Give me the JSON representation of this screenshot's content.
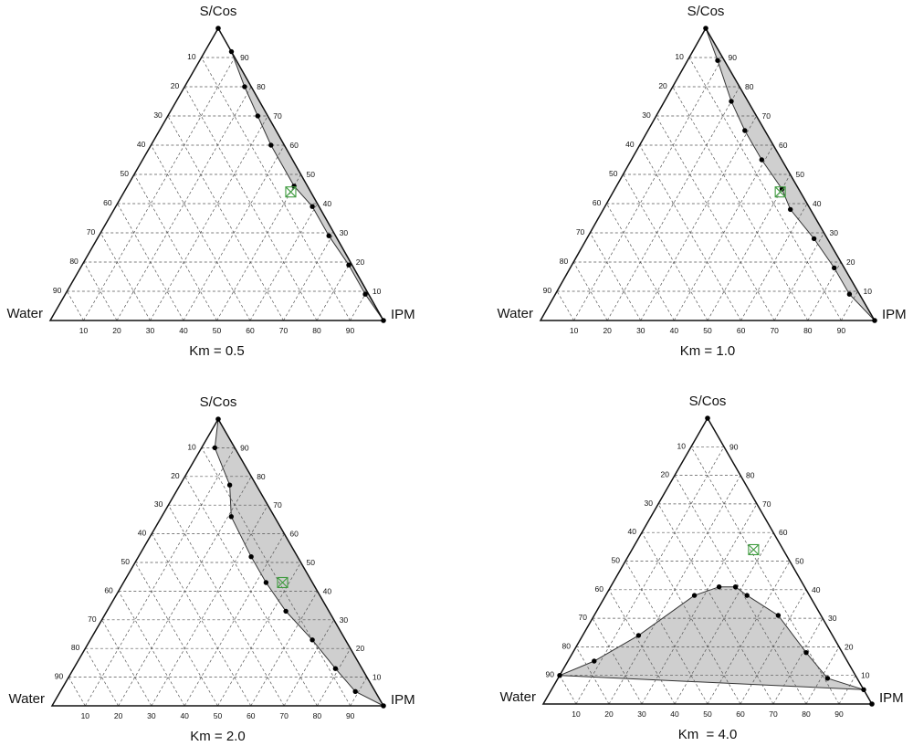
{
  "chart_data": [
    {
      "type": "ternary",
      "label": "Km = 0.5",
      "vertices": {
        "top": "S/Cos",
        "left": "Water",
        "right": "IPM"
      },
      "left_axis_ticks": [
        "10",
        "20",
        "30",
        "40",
        "50",
        "60",
        "70",
        "80",
        "90"
      ],
      "right_axis_ticks": [
        "90",
        "80",
        "70",
        "60",
        "50",
        "40",
        "30",
        "20",
        "10"
      ],
      "bottom_axis_ticks": [
        "10",
        "20",
        "30",
        "40",
        "50",
        "60",
        "70",
        "80",
        "90"
      ],
      "boundary_points": [
        {
          "scos": 100,
          "ipm": 0,
          "water": 0
        },
        {
          "scos": 92,
          "ipm": 8,
          "water": 0
        },
        {
          "scos": 80,
          "ipm": 18,
          "water": 2
        },
        {
          "scos": 70,
          "ipm": 27,
          "water": 3
        },
        {
          "scos": 60,
          "ipm": 36,
          "water": 4
        },
        {
          "scos": 46,
          "ipm": 50,
          "water": 4
        },
        {
          "scos": 39,
          "ipm": 59,
          "water": 2
        },
        {
          "scos": 29,
          "ipm": 69,
          "water": 2
        },
        {
          "scos": 19,
          "ipm": 80,
          "water": 1
        },
        {
          "scos": 9,
          "ipm": 90,
          "water": 1
        },
        {
          "scos": 0,
          "ipm": 100,
          "water": 0
        }
      ],
      "formulation_point": {
        "scos": 44,
        "ipm": 50,
        "water": 6
      }
    },
    {
      "type": "ternary",
      "label": "Km = 1.0",
      "vertices": {
        "top": "S/Cos",
        "left": "Water",
        "right": "IPM"
      },
      "left_axis_ticks": [
        "10",
        "20",
        "30",
        "40",
        "50",
        "60",
        "70",
        "80",
        "90"
      ],
      "right_axis_ticks": [
        "90",
        "80",
        "70",
        "60",
        "50",
        "40",
        "30",
        "20",
        "10"
      ],
      "bottom_axis_ticks": [
        "10",
        "20",
        "30",
        "40",
        "50",
        "60",
        "70",
        "80",
        "90"
      ],
      "boundary_points": [
        {
          "scos": 100,
          "ipm": 0,
          "water": 0
        },
        {
          "scos": 89,
          "ipm": 9,
          "water": 2
        },
        {
          "scos": 75,
          "ipm": 20,
          "water": 5
        },
        {
          "scos": 65,
          "ipm": 29,
          "water": 6
        },
        {
          "scos": 55,
          "ipm": 39,
          "water": 6
        },
        {
          "scos": 45,
          "ipm": 50,
          "water": 5
        },
        {
          "scos": 38,
          "ipm": 56,
          "water": 6
        },
        {
          "scos": 28,
          "ipm": 68,
          "water": 4
        },
        {
          "scos": 18,
          "ipm": 79,
          "water": 3
        },
        {
          "scos": 9,
          "ipm": 88,
          "water": 3
        },
        {
          "scos": 0,
          "ipm": 100,
          "water": 0
        }
      ],
      "formulation_point": {
        "scos": 44,
        "ipm": 50,
        "water": 6
      }
    },
    {
      "type": "ternary",
      "label": "Km = 2.0",
      "vertices": {
        "top": "S/Cos",
        "left": "Water",
        "right": "IPM"
      },
      "left_axis_ticks": [
        "10",
        "20",
        "30",
        "40",
        "50",
        "60",
        "70",
        "80",
        "90"
      ],
      "right_axis_ticks": [
        "90",
        "80",
        "70",
        "60",
        "50",
        "40",
        "30",
        "20",
        "10"
      ],
      "bottom_axis_ticks": [
        "10",
        "20",
        "30",
        "40",
        "50",
        "60",
        "70",
        "80",
        "90"
      ],
      "boundary_points": [
        {
          "scos": 100,
          "ipm": 0,
          "water": 0
        },
        {
          "scos": 90,
          "ipm": 4,
          "water": 6
        },
        {
          "scos": 77,
          "ipm": 15,
          "water": 8
        },
        {
          "scos": 66,
          "ipm": 21,
          "water": 13
        },
        {
          "scos": 52,
          "ipm": 34,
          "water": 14
        },
        {
          "scos": 43,
          "ipm": 43,
          "water": 14
        },
        {
          "scos": 33,
          "ipm": 54,
          "water": 13
        },
        {
          "scos": 23,
          "ipm": 67,
          "water": 10
        },
        {
          "scos": 13,
          "ipm": 79,
          "water": 8
        },
        {
          "scos": 5,
          "ipm": 89,
          "water": 6
        },
        {
          "scos": 0,
          "ipm": 100,
          "water": 0
        }
      ],
      "formulation_point": {
        "scos": 43,
        "ipm": 48,
        "water": 9
      }
    },
    {
      "type": "ternary",
      "label": "Km  = 4.0",
      "vertices": {
        "top": "S/Cos",
        "left": "Water",
        "right": "IPM"
      },
      "left_axis_ticks": [
        "10",
        "20",
        "30",
        "40",
        "50",
        "60",
        "70",
        "80",
        "90"
      ],
      "right_axis_ticks": [
        "90",
        "80",
        "70",
        "60",
        "50",
        "40",
        "30",
        "20",
        "10"
      ],
      "bottom_axis_ticks": [
        "10",
        "20",
        "30",
        "40",
        "50",
        "60",
        "70",
        "80",
        "90"
      ],
      "boundary_points": [
        {
          "scos": 10,
          "ipm": 0,
          "water": 90
        },
        {
          "scos": 15,
          "ipm": 8,
          "water": 77
        },
        {
          "scos": 24,
          "ipm": 17,
          "water": 59
        },
        {
          "scos": 38,
          "ipm": 27,
          "water": 35
        },
        {
          "scos": 41,
          "ipm": 33,
          "water": 26
        },
        {
          "scos": 41,
          "ipm": 38,
          "water": 21
        },
        {
          "scos": 38,
          "ipm": 43,
          "water": 19
        },
        {
          "scos": 31,
          "ipm": 56,
          "water": 13
        },
        {
          "scos": 18,
          "ipm": 71,
          "water": 11
        },
        {
          "scos": 9,
          "ipm": 82,
          "water": 9
        },
        {
          "scos": 5,
          "ipm": 95,
          "water": 0
        }
      ],
      "formulation_point": {
        "scos": 54,
        "ipm": 37,
        "water": 9
      }
    }
  ]
}
